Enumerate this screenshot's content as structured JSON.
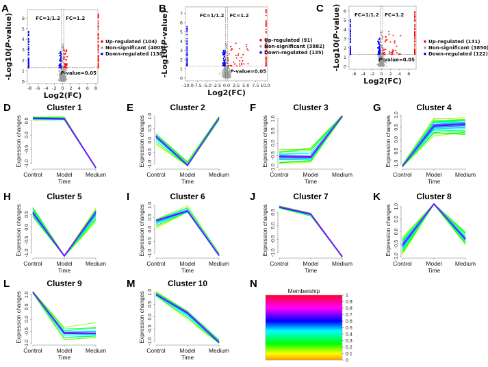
{
  "figure": {
    "panel_letters": [
      "A",
      "B",
      "C",
      "D",
      "E",
      "F",
      "G",
      "H",
      "I",
      "J",
      "K",
      "L",
      "M",
      "N"
    ]
  },
  "chart_data": [
    {
      "panel": "A",
      "type": "scatter",
      "subtype": "volcano",
      "xlabel": "Log2(FC)",
      "ylabel": "-Log10(P-value)",
      "xlim": [
        -8.5,
        8.5
      ],
      "ylim": [
        -0.2,
        6.8
      ],
      "xticks": [
        "-8",
        "-6",
        "-4",
        "-2",
        "0",
        "2",
        "4",
        "6",
        "8"
      ],
      "xtick_values": [
        -8,
        -6,
        -4,
        -2,
        0,
        2,
        4,
        6,
        8
      ],
      "yticks": [
        "0",
        "1",
        "2",
        "3",
        "4",
        "5",
        "6"
      ],
      "ytick_values": [
        0,
        1,
        2,
        3,
        4,
        5,
        6
      ],
      "fc_thresholds": {
        "low_label": "FC=1/1.2",
        "high_label": "FC=1.2",
        "low": -0.263,
        "high": 0.263
      },
      "p_threshold": {
        "label": "P-value=0.05",
        "y": 1.301
      },
      "extreme_x": {
        "down": -8.2,
        "up": 8.6
      },
      "legend": [
        {
          "label": "Up-regulated (104)",
          "count": 104,
          "color": "#ff0000"
        },
        {
          "label": "Non-significant (4008)",
          "count": 4008,
          "color": "#a0a0a0"
        },
        {
          "label": "Down-regulated (130)",
          "count": 130,
          "color": "#0000ff"
        }
      ],
      "max_up_y": 6.6,
      "max_down_y": 5.0
    },
    {
      "panel": "B",
      "type": "scatter",
      "subtype": "volcano",
      "xlabel": "Log2(FC)",
      "ylabel": "-Log10(P-value)",
      "xlim": [
        -10.6,
        10.6
      ],
      "ylim": [
        -0.3,
        7.7
      ],
      "xticks": [
        "-10.0",
        "-7.5",
        "-5.0",
        "-2.5",
        "0.0",
        "2.5",
        "5.0",
        "7.5",
        "10.0"
      ],
      "xtick_values": [
        -10,
        -7.5,
        -5,
        -2.5,
        0,
        2.5,
        5,
        7.5,
        10
      ],
      "yticks": [
        "0",
        "1",
        "2",
        "3",
        "4",
        "5",
        "6",
        "7"
      ],
      "ytick_values": [
        0,
        1,
        2,
        3,
        4,
        5,
        6,
        7
      ],
      "fc_thresholds": {
        "low_label": "FC=1/1.2",
        "high_label": "FC=1.2",
        "low": -0.263,
        "high": 0.263
      },
      "p_threshold": {
        "label": "P-value=0.05",
        "y": 1.301
      },
      "extreme_x": {
        "down": -10.2,
        "up": 10.2
      },
      "legend": [
        {
          "label": "Up-regulated (91)",
          "count": 91,
          "color": "#ff0000"
        },
        {
          "label": "Non-significant (3882)",
          "count": 3882,
          "color": "#a0a0a0"
        },
        {
          "label": "Down-regulated (135)",
          "count": 135,
          "color": "#0000ff"
        }
      ],
      "max_up_y": 7.4,
      "max_down_y": 5.6
    },
    {
      "panel": "C",
      "type": "scatter",
      "subtype": "volcano",
      "xlabel": "Log2(FC)",
      "ylabel": "-Log10(P-value)",
      "xlim": [
        -7.1,
        7.6
      ],
      "ylim": [
        -0.3,
        6.5
      ],
      "xticks": [
        "-6",
        "-4",
        "-2",
        "0",
        "2",
        "4",
        "6"
      ],
      "xtick_values": [
        -6,
        -4,
        -2,
        0,
        2,
        4,
        6
      ],
      "yticks": [
        "0",
        "1",
        "2",
        "3",
        "4",
        "5",
        "6"
      ],
      "ytick_values": [
        0,
        1,
        2,
        3,
        4,
        5,
        6
      ],
      "fc_thresholds": {
        "low_label": "FC=1/1.2",
        "high_label": "FC=1.2",
        "low": -0.263,
        "high": 0.263
      },
      "p_threshold": {
        "label": "P-value=0.05",
        "y": 1.301
      },
      "extreme_x": {
        "down": -6.8,
        "up": 7.3
      },
      "legend": [
        {
          "label": "Up-regulated (131)",
          "count": 131,
          "color": "#ff0000"
        },
        {
          "label": "Non-significant (3850)",
          "count": 3850,
          "color": "#a0a0a0"
        },
        {
          "label": "Down-regulated (122)",
          "count": 122,
          "color": "#0000ff"
        }
      ],
      "max_up_y": 6.2,
      "max_down_y": 5.1
    },
    {
      "panel": "D",
      "type": "line",
      "title": "Cluster 1",
      "xlabel": "Time",
      "ylabel": "Expression changes",
      "categories": [
        "Control",
        "Model",
        "Medium"
      ],
      "ylim": [
        -1.15,
        0.7
      ],
      "yticks": [
        "-1.0",
        "-0.5",
        "0.0",
        "0.5"
      ],
      "ytick_values": [
        -1.0,
        -0.5,
        0.0,
        0.5
      ],
      "center": [
        0.58,
        0.56,
        -1.15
      ],
      "control_spread": [
        0.48,
        0.65
      ],
      "model_spread": [
        0.52,
        0.65
      ],
      "medium_spread": [
        -1.15,
        -1.15
      ],
      "n_lines": 12
    },
    {
      "panel": "E",
      "type": "line",
      "title": "Cluster 2",
      "xlabel": "Time",
      "ylabel": "Expression changes",
      "categories": [
        "Control",
        "Model",
        "Medium"
      ],
      "ylim": [
        -1.15,
        1.05
      ],
      "yticks": [
        "-1.0",
        "-0.5",
        "0.0",
        "0.5",
        "1.0"
      ],
      "ytick_values": [
        -1.0,
        -0.5,
        0.0,
        0.5,
        1.0
      ],
      "center": [
        0.15,
        -1.05,
        0.92
      ],
      "control_spread": [
        -0.25,
        0.3
      ],
      "model_spread": [
        -1.08,
        -0.85
      ],
      "medium_spread": [
        0.82,
        1.05
      ],
      "n_lines": 14
    },
    {
      "panel": "F",
      "type": "line",
      "title": "Cluster 3",
      "xlabel": "Time",
      "ylabel": "Expression changes",
      "categories": [
        "Control",
        "Model",
        "Medium"
      ],
      "ylim": [
        -1.0,
        1.15
      ],
      "yticks": [
        "-1.0",
        "-0.5",
        "0.0",
        "0.5",
        "1.0"
      ],
      "ytick_values": [
        -1.0,
        -0.5,
        0.0,
        0.5,
        1.0
      ],
      "center": [
        -0.55,
        -0.58,
        1.1
      ],
      "control_spread": [
        -0.95,
        -0.2
      ],
      "model_spread": [
        -0.82,
        0.0
      ],
      "medium_spread": [
        1.05,
        1.15
      ],
      "n_lines": 20
    },
    {
      "panel": "G",
      "type": "line",
      "title": "Cluster 4",
      "xlabel": "Time",
      "ylabel": "Expression changes",
      "categories": [
        "Control",
        "Model",
        "Medium"
      ],
      "ylim": [
        -1.15,
        1.0
      ],
      "yticks": [
        "-1.0",
        "-0.5",
        "0.0",
        "0.5",
        "1.0"
      ],
      "ytick_values": [
        -1.0,
        -0.5,
        0.0,
        0.5,
        1.0
      ],
      "center": [
        -1.1,
        0.55,
        0.62
      ],
      "control_spread": [
        -1.12,
        -1.0
      ],
      "model_spread": [
        0.12,
        0.97
      ],
      "medium_spread": [
        0.07,
        0.93
      ],
      "n_lines": 26
    },
    {
      "panel": "H",
      "type": "line",
      "title": "Cluster 5",
      "xlabel": "Time",
      "ylabel": "Expression changes",
      "categories": [
        "Control",
        "Model",
        "Medium"
      ],
      "ylim": [
        -1.15,
        0.9
      ],
      "yticks": [
        "-1.0",
        "-0.5",
        "0.0",
        "0.5"
      ],
      "ytick_values": [
        -1.0,
        -0.5,
        0.0,
        0.5
      ],
      "center": [
        0.55,
        -1.12,
        0.58
      ],
      "control_spread": [
        0.35,
        0.88
      ],
      "model_spread": [
        -1.14,
        -1.1
      ],
      "medium_spread": [
        0.15,
        0.75
      ],
      "n_lines": 22
    },
    {
      "panel": "I",
      "type": "line",
      "title": "Cluster 6",
      "xlabel": "Time",
      "ylabel": "Expression changes",
      "categories": [
        "Control",
        "Model",
        "Medium"
      ],
      "ylim": [
        -1.15,
        1.05
      ],
      "yticks": [
        "-1.0",
        "-0.5",
        "0.0",
        "0.5",
        "1.0"
      ],
      "ytick_values": [
        -1.0,
        -0.5,
        0.0,
        0.5,
        1.0
      ],
      "center": [
        0.35,
        0.75,
        -1.1
      ],
      "control_spread": [
        -0.08,
        0.45
      ],
      "model_spread": [
        0.7,
        1.02
      ],
      "medium_spread": [
        -1.12,
        -0.95
      ],
      "n_lines": 16
    },
    {
      "panel": "J",
      "type": "line",
      "title": "Cluster 7",
      "xlabel": "Time",
      "ylabel": "Expression changes",
      "categories": [
        "Control",
        "Model",
        "Medium"
      ],
      "ylim": [
        -1.15,
        0.8
      ],
      "yticks": [
        "-1.0",
        "-0.5",
        "0.0",
        "0.5"
      ],
      "ytick_values": [
        -1.0,
        -0.5,
        0.0,
        0.5
      ],
      "center": [
        0.68,
        0.42,
        -1.15
      ],
      "control_spread": [
        0.62,
        0.78
      ],
      "model_spread": [
        0.32,
        0.48
      ],
      "medium_spread": [
        -1.15,
        -1.15
      ],
      "n_lines": 8
    },
    {
      "panel": "K",
      "type": "line",
      "title": "Cluster 8",
      "xlabel": "Time",
      "ylabel": "Expression changes",
      "categories": [
        "Control",
        "Model",
        "Medium"
      ],
      "ylim": [
        -1.0,
        1.1
      ],
      "yticks": [
        "-1.0",
        "-0.5",
        "0.0",
        "0.5",
        "1.0"
      ],
      "ytick_values": [
        -1.0,
        -0.5,
        0.0,
        0.5,
        1.0
      ],
      "center": [
        -0.55,
        1.1,
        -0.3
      ],
      "control_spread": [
        -0.95,
        -0.15
      ],
      "model_spread": [
        1.08,
        1.12
      ],
      "medium_spread": [
        -0.55,
        0.05
      ],
      "n_lines": 22
    },
    {
      "panel": "L",
      "type": "line",
      "title": "Cluster 9",
      "xlabel": "Time",
      "ylabel": "Expression changes",
      "categories": [
        "Control",
        "Model",
        "Medium"
      ],
      "ylim": [
        -1.0,
        1.15
      ],
      "yticks": [
        "-1.0",
        "-0.5",
        "0.0",
        "0.5",
        "1.0"
      ],
      "ytick_values": [
        -1.0,
        -0.5,
        0.0,
        0.5,
        1.0
      ],
      "center": [
        1.1,
        -0.58,
        -0.58
      ],
      "control_spread": [
        1.05,
        1.15
      ],
      "model_spread": [
        -0.95,
        -0.25
      ],
      "medium_spread": [
        -0.8,
        -0.05
      ],
      "n_lines": 12
    },
    {
      "panel": "M",
      "type": "line",
      "title": "Cluster 10",
      "xlabel": "Time",
      "ylabel": "Expression changes",
      "categories": [
        "Control",
        "Model",
        "Medium"
      ],
      "ylim": [
        -1.1,
        1.05
      ],
      "yticks": [
        "-1.0",
        "-0.5",
        "0.0",
        "0.5",
        "1.0"
      ],
      "ytick_values": [
        -1.0,
        -0.5,
        0.0,
        0.5,
        1.0
      ],
      "center": [
        0.9,
        0.15,
        -1.05
      ],
      "control_spread": [
        0.82,
        1.05
      ],
      "model_spread": [
        -0.18,
        0.28
      ],
      "medium_spread": [
        -1.1,
        -0.9
      ],
      "n_lines": 16
    },
    {
      "panel": "N",
      "type": "heatmap",
      "subtype": "colorbar",
      "title": "Membership",
      "ticks": [
        "0",
        "0.1",
        "0.2",
        "0.3",
        "0.4",
        "0.5",
        "0.6",
        "0.7",
        "0.8",
        "0.9",
        "1"
      ],
      "tick_values": [
        0,
        0.1,
        0.2,
        0.3,
        0.4,
        0.5,
        0.6,
        0.7,
        0.8,
        0.9,
        1
      ],
      "color_stops": [
        {
          "value": 0.0,
          "color": "#ff9900"
        },
        {
          "value": 0.1,
          "color": "#ffff00"
        },
        {
          "value": 0.25,
          "color": "#00ff00"
        },
        {
          "value": 0.45,
          "color": "#00ffff"
        },
        {
          "value": 0.6,
          "color": "#0000ff"
        },
        {
          "value": 0.8,
          "color": "#ff00ff"
        },
        {
          "value": 1.0,
          "color": "#ff0033"
        }
      ]
    }
  ]
}
